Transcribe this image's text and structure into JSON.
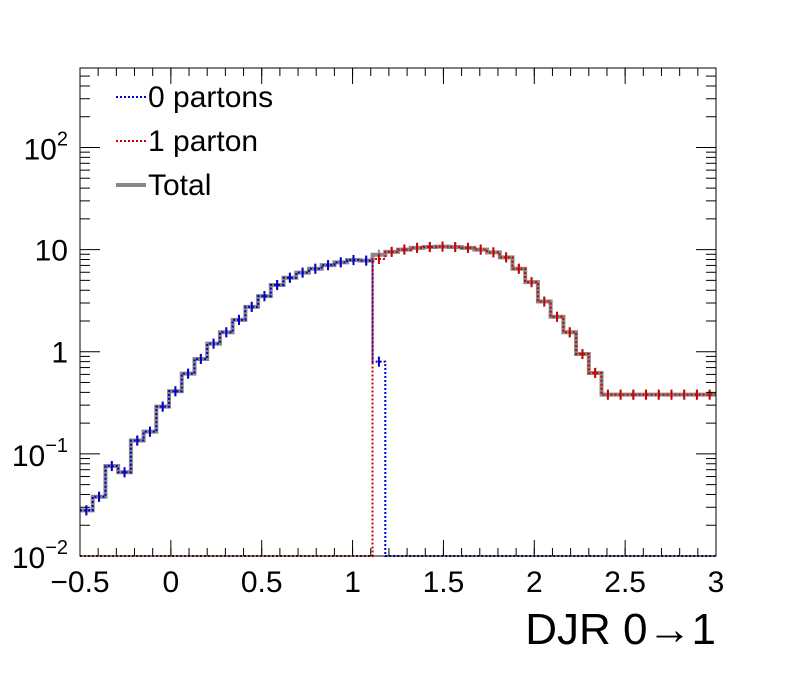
{
  "chart_data": {
    "type": "line",
    "title": "",
    "xlabel": "DJR 0→1",
    "ylabel": "",
    "xlim": [
      -0.5,
      3.0
    ],
    "ylim": [
      0.01,
      600
    ],
    "yscale": "log",
    "grid": false,
    "legend_position": "top-left",
    "x_ticks": [
      {
        "value": -0.5,
        "label": "−0.5"
      },
      {
        "value": 0,
        "label": "0"
      },
      {
        "value": 0.5,
        "label": "0.5"
      },
      {
        "value": 1,
        "label": "1"
      },
      {
        "value": 1.5,
        "label": "1.5"
      },
      {
        "value": 2,
        "label": "2"
      },
      {
        "value": 2.5,
        "label": "2.5"
      },
      {
        "value": 3,
        "label": "3"
      }
    ],
    "y_ticks": [
      {
        "value": 0.01,
        "base": "10",
        "exp": "−2",
        "label": ""
      },
      {
        "value": 0.1,
        "base": "10",
        "exp": "−1",
        "label": ""
      },
      {
        "value": 1,
        "base": "",
        "exp": "",
        "label": "1"
      },
      {
        "value": 10,
        "base": "",
        "exp": "",
        "label": "10"
      },
      {
        "value": 100,
        "base": "10",
        "exp": "2",
        "label": ""
      }
    ],
    "bin_width": 0.07,
    "bin_start": -0.5,
    "series": [
      {
        "name": "0 partons",
        "color": "#0000cc",
        "dash": "dotted",
        "values": [
          0.028,
          0.038,
          0.076,
          0.066,
          0.135,
          0.165,
          0.29,
          0.41,
          0.61,
          0.85,
          1.2,
          1.55,
          2.05,
          2.75,
          3.5,
          4.5,
          5.3,
          5.95,
          6.5,
          7.05,
          7.5,
          7.9,
          7.8,
          0.8,
          0.01,
          0.01,
          0.01,
          0.01,
          0.01,
          0.01,
          0.01,
          0.01,
          0.01,
          0.01,
          0.01,
          0.01,
          0.01,
          0.01,
          0.01,
          0.01,
          0.01,
          0.01,
          0.01,
          0.01,
          0.01,
          0.01,
          0.01,
          0.01,
          0.01,
          0.01
        ]
      },
      {
        "name": "1 parton",
        "color": "#cc0000",
        "dash": "dotted",
        "values": [
          0.01,
          0.01,
          0.01,
          0.01,
          0.01,
          0.01,
          0.01,
          0.01,
          0.01,
          0.01,
          0.01,
          0.01,
          0.01,
          0.01,
          0.01,
          0.01,
          0.01,
          0.01,
          0.01,
          0.01,
          0.01,
          0.01,
          0.01,
          8.1,
          9.5,
          10.0,
          10.4,
          10.6,
          10.7,
          10.6,
          10.4,
          10.0,
          9.4,
          8.4,
          6.5,
          4.8,
          3.1,
          2.2,
          1.55,
          0.95,
          0.62,
          0.38,
          0.38,
          0.38,
          0.38,
          0.38,
          0.38,
          0.38,
          0.38,
          0.38
        ]
      },
      {
        "name": "Total",
        "color": "#888888",
        "dash": "solid",
        "values": [
          0.028,
          0.038,
          0.076,
          0.066,
          0.135,
          0.165,
          0.29,
          0.41,
          0.61,
          0.85,
          1.2,
          1.55,
          2.05,
          2.75,
          3.5,
          4.5,
          5.3,
          5.95,
          6.5,
          7.05,
          7.5,
          7.9,
          7.8,
          8.9,
          9.5,
          10.0,
          10.4,
          10.6,
          10.7,
          10.6,
          10.4,
          10.0,
          9.4,
          8.4,
          6.5,
          4.8,
          3.1,
          2.2,
          1.55,
          0.95,
          0.62,
          0.38,
          0.38,
          0.38,
          0.38,
          0.38,
          0.38,
          0.38,
          0.38,
          0.38
        ]
      }
    ]
  }
}
